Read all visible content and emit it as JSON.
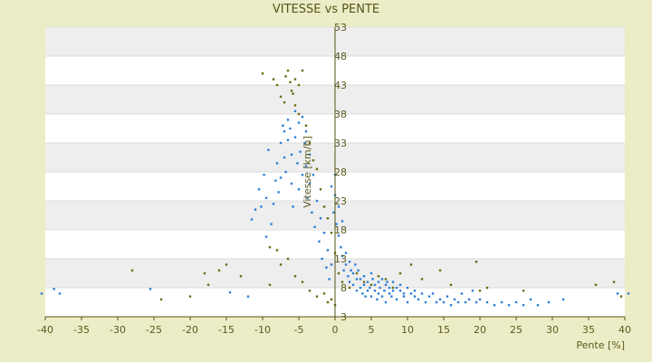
{
  "chart_data": {
    "type": "scatter",
    "title": "VITESSE vs PENTE",
    "xlabel": "Pente [%]",
    "ylabel": "Vitesse [km/h]",
    "xlim": [
      -40,
      40
    ],
    "ylim": [
      3,
      53
    ],
    "x_ticks": [
      "-40",
      "-35",
      "-30",
      "-25",
      "-20",
      "-15",
      "-10",
      "-5",
      "0",
      "5",
      "10",
      "15",
      "20",
      "25",
      "30",
      "35",
      "40"
    ],
    "y_ticks": [
      "3",
      "8",
      "13",
      "18",
      "23",
      "28",
      "33",
      "38",
      "43",
      "48",
      "53"
    ],
    "grid": true,
    "legend": "none",
    "colors": {
      "series_a": "#2e7fd6",
      "series_b": "#6b6b10",
      "band": "#eeeeee",
      "plot_bg": "#ffffff",
      "page_bg": "#ececc6",
      "axis": "#55551a"
    },
    "series": [
      {
        "values": [
          [
            -40.5,
            7.0
          ],
          [
            -38.8,
            7.8
          ],
          [
            -38.0,
            7.0
          ],
          [
            -25.5,
            7.8
          ],
          [
            -14.5,
            7.2
          ],
          [
            -12.0,
            6.5
          ],
          [
            -11.5,
            19.8
          ],
          [
            -11.0,
            21.5
          ],
          [
            -10.5,
            25.0
          ],
          [
            -10.2,
            22.0
          ],
          [
            -9.8,
            27.5
          ],
          [
            -9.5,
            23.5
          ],
          [
            -9.2,
            31.8
          ],
          [
            -9.5,
            16.8
          ],
          [
            -8.8,
            19.0
          ],
          [
            -8.5,
            22.5
          ],
          [
            -8.2,
            26.5
          ],
          [
            -8.0,
            29.5
          ],
          [
            -7.8,
            24.5
          ],
          [
            -7.5,
            33.0
          ],
          [
            -7.5,
            27.0
          ],
          [
            -7.2,
            36.0
          ],
          [
            -7.0,
            35.0
          ],
          [
            -7.0,
            30.5
          ],
          [
            -6.8,
            28.0
          ],
          [
            -6.5,
            33.5
          ],
          [
            -6.5,
            37.0
          ],
          [
            -6.2,
            35.5
          ],
          [
            -6.0,
            31.0
          ],
          [
            -6.0,
            26.0
          ],
          [
            -5.8,
            22.0
          ],
          [
            -5.5,
            38.5
          ],
          [
            -5.5,
            34.0
          ],
          [
            -5.2,
            29.5
          ],
          [
            -5.0,
            36.5
          ],
          [
            -5.0,
            25.0
          ],
          [
            -4.8,
            31.5
          ],
          [
            -4.5,
            37.5
          ],
          [
            -4.5,
            27.5
          ],
          [
            -4.2,
            33.0
          ],
          [
            -4.0,
            35.0
          ],
          [
            -4.0,
            29.0
          ],
          [
            -3.8,
            23.5
          ],
          [
            -3.5,
            31.0
          ],
          [
            -3.5,
            26.0
          ],
          [
            -3.2,
            21.0
          ],
          [
            -3.0,
            27.5
          ],
          [
            -2.8,
            18.5
          ],
          [
            -2.5,
            23.0
          ],
          [
            -2.2,
            16.0
          ],
          [
            -2.0,
            20.0
          ],
          [
            -1.8,
            13.0
          ],
          [
            -1.5,
            17.5
          ],
          [
            -1.2,
            11.5
          ],
          [
            -1.0,
            14.5
          ],
          [
            -0.8,
            9.5
          ],
          [
            -0.5,
            12.0
          ],
          [
            -0.5,
            25.5
          ],
          [
            -0.2,
            21.0
          ],
          [
            0.0,
            27.5
          ],
          [
            0.0,
            24.0
          ],
          [
            0.2,
            19.0
          ],
          [
            0.5,
            22.0
          ],
          [
            0.5,
            17.0
          ],
          [
            0.8,
            15.0
          ],
          [
            1.0,
            13.5
          ],
          [
            1.0,
            19.5
          ],
          [
            1.2,
            11.0
          ],
          [
            1.5,
            14.0
          ],
          [
            1.5,
            12.0
          ],
          [
            1.8,
            10.0
          ],
          [
            2.0,
            12.5
          ],
          [
            2.0,
            9.0
          ],
          [
            2.2,
            11.0
          ],
          [
            2.5,
            8.5
          ],
          [
            2.5,
            10.5
          ],
          [
            2.8,
            12.0
          ],
          [
            3.0,
            9.5
          ],
          [
            3.0,
            7.5
          ],
          [
            3.2,
            11.0
          ],
          [
            3.5,
            8.0
          ],
          [
            3.5,
            9.5
          ],
          [
            3.8,
            7.0
          ],
          [
            4.0,
            10.0
          ],
          [
            4.0,
            8.5
          ],
          [
            4.2,
            6.5
          ],
          [
            4.5,
            9.0
          ],
          [
            4.5,
            7.5
          ],
          [
            4.8,
            8.0
          ],
          [
            5.0,
            10.5
          ],
          [
            5.0,
            6.5
          ],
          [
            5.2,
            9.5
          ],
          [
            5.5,
            7.5
          ],
          [
            5.5,
            8.5
          ],
          [
            5.8,
            6.0
          ],
          [
            6.0,
            9.0
          ],
          [
            6.0,
            7.0
          ],
          [
            6.2,
            8.0
          ],
          [
            6.5,
            9.5
          ],
          [
            6.5,
            6.5
          ],
          [
            6.8,
            7.5
          ],
          [
            7.0,
            8.5
          ],
          [
            7.0,
            5.5
          ],
          [
            7.2,
            9.0
          ],
          [
            7.5,
            7.0
          ],
          [
            7.5,
            8.0
          ],
          [
            7.8,
            6.5
          ],
          [
            8.0,
            9.0
          ],
          [
            8.0,
            7.5
          ],
          [
            8.5,
            8.0
          ],
          [
            8.5,
            6.0
          ],
          [
            9.0,
            7.5
          ],
          [
            9.0,
            8.5
          ],
          [
            9.5,
            6.5
          ],
          [
            9.5,
            7.0
          ],
          [
            10.0,
            8.0
          ],
          [
            10.0,
            5.5
          ],
          [
            10.5,
            7.0
          ],
          [
            11.0,
            6.5
          ],
          [
            11.0,
            7.5
          ],
          [
            11.5,
            6.0
          ],
          [
            12.0,
            7.0
          ],
          [
            12.5,
            5.5
          ],
          [
            13.0,
            6.5
          ],
          [
            13.5,
            7.0
          ],
          [
            14.0,
            5.5
          ],
          [
            14.5,
            6.0
          ],
          [
            15.0,
            5.5
          ],
          [
            15.5,
            6.5
          ],
          [
            16.0,
            5.0
          ],
          [
            16.5,
            6.0
          ],
          [
            17.0,
            5.5
          ],
          [
            17.5,
            7.0
          ],
          [
            18.0,
            5.5
          ],
          [
            18.5,
            6.0
          ],
          [
            19.0,
            7.5
          ],
          [
            19.5,
            5.5
          ],
          [
            20.0,
            6.0
          ],
          [
            21.0,
            5.5
          ],
          [
            22.0,
            5.0
          ],
          [
            23.0,
            5.5
          ],
          [
            24.0,
            5.0
          ],
          [
            25.0,
            5.5
          ],
          [
            26.0,
            5.0
          ],
          [
            27.0,
            6.0
          ],
          [
            28.0,
            5.0
          ],
          [
            29.5,
            5.5
          ],
          [
            31.5,
            6.0
          ],
          [
            39.0,
            7.0
          ],
          [
            40.5,
            7.0
          ]
        ]
      },
      {
        "values": [
          [
            -28.0,
            11.0
          ],
          [
            -24.0,
            6.0
          ],
          [
            -20.0,
            6.5
          ],
          [
            -18.0,
            10.5
          ],
          [
            -17.5,
            8.5
          ],
          [
            -16.0,
            11.0
          ],
          [
            -15.0,
            12.0
          ],
          [
            -13.0,
            10.0
          ],
          [
            -10.0,
            45.0
          ],
          [
            -9.0,
            8.5
          ],
          [
            -8.5,
            44.0
          ],
          [
            -8.0,
            43.0
          ],
          [
            -7.5,
            41.0
          ],
          [
            -7.0,
            40.0
          ],
          [
            -6.8,
            44.5
          ],
          [
            -6.5,
            45.5
          ],
          [
            -6.2,
            43.5
          ],
          [
            -6.0,
            42.0
          ],
          [
            -5.8,
            41.5
          ],
          [
            -5.5,
            44.0
          ],
          [
            -5.5,
            39.5
          ],
          [
            -5.0,
            43.0
          ],
          [
            -5.0,
            38.0
          ],
          [
            -4.5,
            45.5
          ],
          [
            -4.0,
            36.0
          ],
          [
            -3.5,
            33.0
          ],
          [
            -3.0,
            30.0
          ],
          [
            -2.5,
            28.5
          ],
          [
            -2.0,
            25.0
          ],
          [
            -1.5,
            22.0
          ],
          [
            -1.0,
            20.0
          ],
          [
            -0.5,
            17.5
          ],
          [
            0.0,
            14.0
          ],
          [
            0.5,
            10.5
          ],
          [
            1.0,
            9.0
          ],
          [
            2.0,
            8.0
          ],
          [
            3.0,
            10.5
          ],
          [
            4.0,
            9.0
          ],
          [
            5.0,
            8.5
          ],
          [
            6.0,
            10.0
          ],
          [
            7.0,
            9.5
          ],
          [
            8.0,
            8.0
          ],
          [
            9.0,
            10.5
          ],
          [
            10.5,
            12.0
          ],
          [
            12.0,
            9.5
          ],
          [
            14.5,
            11.0
          ],
          [
            16.0,
            8.5
          ],
          [
            19.5,
            12.5
          ],
          [
            20.0,
            7.5
          ],
          [
            21.0,
            8.0
          ],
          [
            26.0,
            7.5
          ],
          [
            36.0,
            8.5
          ],
          [
            38.5,
            9.0
          ],
          [
            39.5,
            6.5
          ],
          [
            -9.0,
            15.0
          ],
          [
            -8.0,
            14.5
          ],
          [
            -7.5,
            12.0
          ],
          [
            -6.5,
            13.0
          ],
          [
            -5.5,
            10.0
          ],
          [
            -4.5,
            9.0
          ],
          [
            -3.5,
            7.5
          ],
          [
            -2.5,
            6.5
          ],
          [
            -1.5,
            7.0
          ],
          [
            -1.0,
            5.5
          ],
          [
            -0.5,
            6.0
          ],
          [
            0.0,
            5.0
          ]
        ]
      }
    ]
  }
}
